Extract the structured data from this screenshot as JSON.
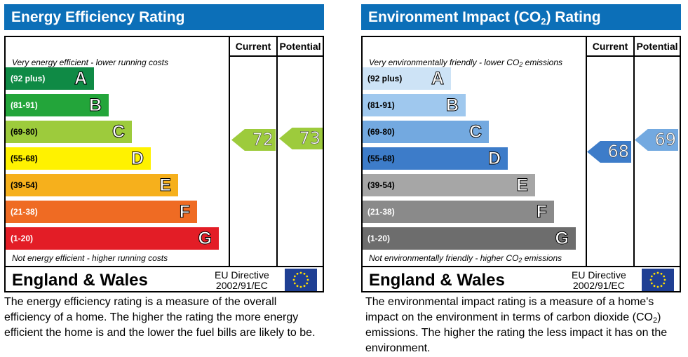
{
  "ee": {
    "title": "Energy Efficiency Rating",
    "col_current": "Current",
    "col_potential": "Potential",
    "top_note": "Very energy efficient - lower running costs",
    "bottom_note": "Not energy efficient - higher running costs",
    "bands": [
      {
        "range": "(92 plus)",
        "letter": "A",
        "color": "#0f8a45",
        "range_color": "#ffffff"
      },
      {
        "range": "(81-91)",
        "letter": "B",
        "color": "#23a53a",
        "range_color": "#ffffff"
      },
      {
        "range": "(69-80)",
        "letter": "C",
        "color": "#9dcb3c",
        "range_color": "#000000"
      },
      {
        "range": "(55-68)",
        "letter": "D",
        "color": "#fff200",
        "range_color": "#000000"
      },
      {
        "range": "(39-54)",
        "letter": "E",
        "color": "#f6b01c",
        "range_color": "#000000"
      },
      {
        "range": "(21-38)",
        "letter": "F",
        "color": "#ef6b23",
        "range_color": "#ffffff"
      },
      {
        "range": "(1-20)",
        "letter": "G",
        "color": "#e31d26",
        "range_color": "#ffffff"
      }
    ],
    "current": {
      "value": "72",
      "color": "#9dcb3c"
    },
    "potential": {
      "value": "73",
      "color": "#9dcb3c"
    },
    "region": "England & Wales",
    "directive_line1": "EU Directive",
    "directive_line2": "2002/91/EC",
    "description": "The energy efficiency rating is a measure of the overall efficiency of a home. The higher the rating the more energy efficient the home is and the lower the fuel bills are likely to be."
  },
  "ei": {
    "title_pre": "Environment Impact (CO",
    "title_sub": "2",
    "title_post": ") Rating",
    "col_current": "Current",
    "col_potential": "Potential",
    "top_note_pre": "Very environmentally friendly - lower CO",
    "top_note_sub": "2",
    "top_note_post": " emissions",
    "bottom_note_pre": "Not environmentally friendly - higher CO",
    "bottom_note_sub": "2",
    "bottom_note_post": " emissions",
    "bands": [
      {
        "range": "(92 plus)",
        "letter": "A",
        "color": "#cde3f6",
        "range_color": "#000000"
      },
      {
        "range": "(81-91)",
        "letter": "B",
        "color": "#9fc8ee",
        "range_color": "#000000"
      },
      {
        "range": "(69-80)",
        "letter": "C",
        "color": "#73a9e0",
        "range_color": "#000000"
      },
      {
        "range": "(55-68)",
        "letter": "D",
        "color": "#3d7cc9",
        "range_color": "#000000"
      },
      {
        "range": "(39-54)",
        "letter": "E",
        "color": "#a6a6a6",
        "range_color": "#000000"
      },
      {
        "range": "(21-38)",
        "letter": "F",
        "color": "#8a8a8a",
        "range_color": "#ffffff"
      },
      {
        "range": "(1-20)",
        "letter": "G",
        "color": "#6d6d6d",
        "range_color": "#ffffff"
      }
    ],
    "current": {
      "value": "68",
      "color": "#3d7cc9"
    },
    "potential": {
      "value": "69",
      "color": "#73a9e0"
    },
    "region": "England & Wales",
    "directive_line1": "EU Directive",
    "directive_line2": "2002/91/EC",
    "desc_pre": "The environmental impact rating is a measure of a home's impact on the environment in terms of carbon dioxide (CO",
    "desc_sub": "2",
    "desc_post": ") emissions. The higher the rating the less impact it has on the environment."
  }
}
